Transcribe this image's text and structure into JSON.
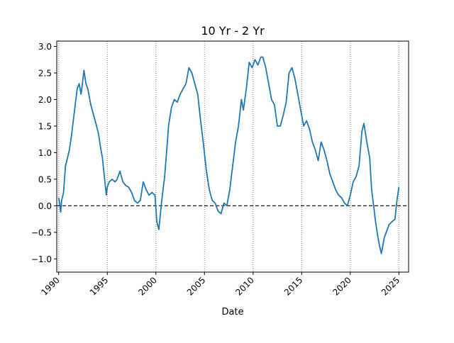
{
  "chart_data": {
    "type": "line",
    "title": "10 Yr - 2 Yr",
    "xlabel": "Date",
    "ylabel": "",
    "xlim": [
      1989.8,
      2026.0
    ],
    "ylim": [
      -1.25,
      3.1
    ],
    "x_ticks": [
      {
        "value": 1990,
        "label": "1990"
      },
      {
        "value": 1995,
        "label": "1995"
      },
      {
        "value": 2000,
        "label": "2000"
      },
      {
        "value": 2005,
        "label": "2005"
      },
      {
        "value": 2010,
        "label": "2010"
      },
      {
        "value": 2015,
        "label": "2015"
      },
      {
        "value": 2020,
        "label": "2020"
      },
      {
        "value": 2025,
        "label": "2025"
      }
    ],
    "y_ticks": [
      {
        "value": 3.0,
        "label": "3.0"
      },
      {
        "value": 2.5,
        "label": "2.5"
      },
      {
        "value": 2.0,
        "label": "2.0"
      },
      {
        "value": 1.5,
        "label": "1.5"
      },
      {
        "value": 1.0,
        "label": "1.0"
      },
      {
        "value": 0.5,
        "label": "0.5"
      },
      {
        "value": 0.0,
        "label": "0.0"
      },
      {
        "value": -0.5,
        "label": "−0.5"
      },
      {
        "value": -1.0,
        "label": "−1.0"
      }
    ],
    "vertical_lines": [
      1990,
      1995,
      2000,
      2005,
      2010,
      2015,
      2020,
      2025
    ],
    "reference_line": {
      "y": 0.0,
      "style": "dashed",
      "color": "#000000"
    },
    "grid": false,
    "series_color": "#1f77b4",
    "series": [
      {
        "x": [
          1990.0,
          1990.1,
          1990.2,
          1990.3,
          1990.5,
          1990.7,
          1990.9,
          1991.1,
          1991.3,
          1991.5,
          1991.7,
          1991.9,
          1992.1,
          1992.3,
          1992.6,
          1992.8,
          1993.0,
          1993.3,
          1993.6,
          1993.9,
          1994.1,
          1994.3,
          1994.5,
          1994.7,
          1994.9,
          1995.0,
          1995.2,
          1995.5,
          1995.8,
          1996.0,
          1996.3,
          1996.6,
          1996.9,
          1997.2,
          1997.5,
          1997.8,
          1998.1,
          1998.4,
          1998.7,
          1999.0,
          1999.3,
          1999.6,
          1999.9,
          2000.1,
          2000.3,
          2000.6,
          2000.9,
          2001.1,
          2001.3,
          2001.6,
          2001.9,
          2002.2,
          2002.5,
          2002.8,
          2003.1,
          2003.4,
          2003.7,
          2004.0,
          2004.3,
          2004.6,
          2004.9,
          2005.2,
          2005.5,
          2005.8,
          2006.1,
          2006.4,
          2006.7,
          2007.0,
          2007.3,
          2007.6,
          2007.8,
          2008.0,
          2008.2,
          2008.5,
          2008.8,
          2009.0,
          2009.3,
          2009.6,
          2009.9,
          2010.2,
          2010.5,
          2010.8,
          2011.0,
          2011.3,
          2011.6,
          2011.9,
          2012.2,
          2012.5,
          2012.8,
          2013.1,
          2013.4,
          2013.7,
          2014.0,
          2014.3,
          2014.6,
          2014.9,
          2015.2,
          2015.5,
          2015.8,
          2016.1,
          2016.4,
          2016.7,
          2017.0,
          2017.3,
          2017.6,
          2017.9,
          2018.2,
          2018.5,
          2018.8,
          2019.1,
          2019.4,
          2019.7,
          2020.0,
          2020.3,
          2020.6,
          2020.9,
          2021.2,
          2021.4,
          2021.7,
          2022.0,
          2022.2,
          2022.4,
          2022.6,
          2022.8,
          2023.0,
          2023.2,
          2023.5,
          2023.8,
          2024.0,
          2024.3,
          2024.6,
          2024.8,
          2025.0
        ],
        "values": [
          0.15,
          0.05,
          -0.12,
          0.1,
          0.25,
          0.75,
          0.9,
          1.05,
          1.3,
          1.6,
          1.9,
          2.2,
          2.3,
          2.1,
          2.55,
          2.3,
          2.2,
          1.9,
          1.7,
          1.5,
          1.35,
          1.1,
          0.9,
          0.55,
          0.2,
          0.35,
          0.45,
          0.5,
          0.45,
          0.5,
          0.65,
          0.45,
          0.38,
          0.35,
          0.25,
          0.1,
          0.05,
          0.1,
          0.45,
          0.3,
          0.2,
          0.25,
          0.2,
          -0.3,
          -0.45,
          0.1,
          0.55,
          1.0,
          1.5,
          1.85,
          2.0,
          1.95,
          2.1,
          2.2,
          2.3,
          2.6,
          2.5,
          2.3,
          2.1,
          1.6,
          1.15,
          0.65,
          0.3,
          0.1,
          0.05,
          -0.1,
          -0.15,
          0.05,
          0.0,
          0.3,
          0.6,
          0.9,
          1.2,
          1.5,
          2.0,
          1.8,
          2.2,
          2.7,
          2.6,
          2.75,
          2.65,
          2.8,
          2.8,
          2.6,
          2.3,
          2.0,
          1.9,
          1.5,
          1.5,
          1.7,
          1.95,
          2.5,
          2.6,
          2.4,
          2.1,
          1.8,
          1.5,
          1.6,
          1.45,
          1.2,
          1.05,
          0.85,
          1.2,
          1.05,
          0.85,
          0.6,
          0.45,
          0.3,
          0.2,
          0.15,
          0.05,
          0.0,
          0.2,
          0.45,
          0.55,
          0.75,
          1.4,
          1.55,
          1.2,
          0.9,
          0.3,
          0.0,
          -0.3,
          -0.55,
          -0.75,
          -0.9,
          -0.6,
          -0.45,
          -0.35,
          -0.3,
          -0.25,
          0.1,
          0.35
        ]
      }
    ]
  }
}
